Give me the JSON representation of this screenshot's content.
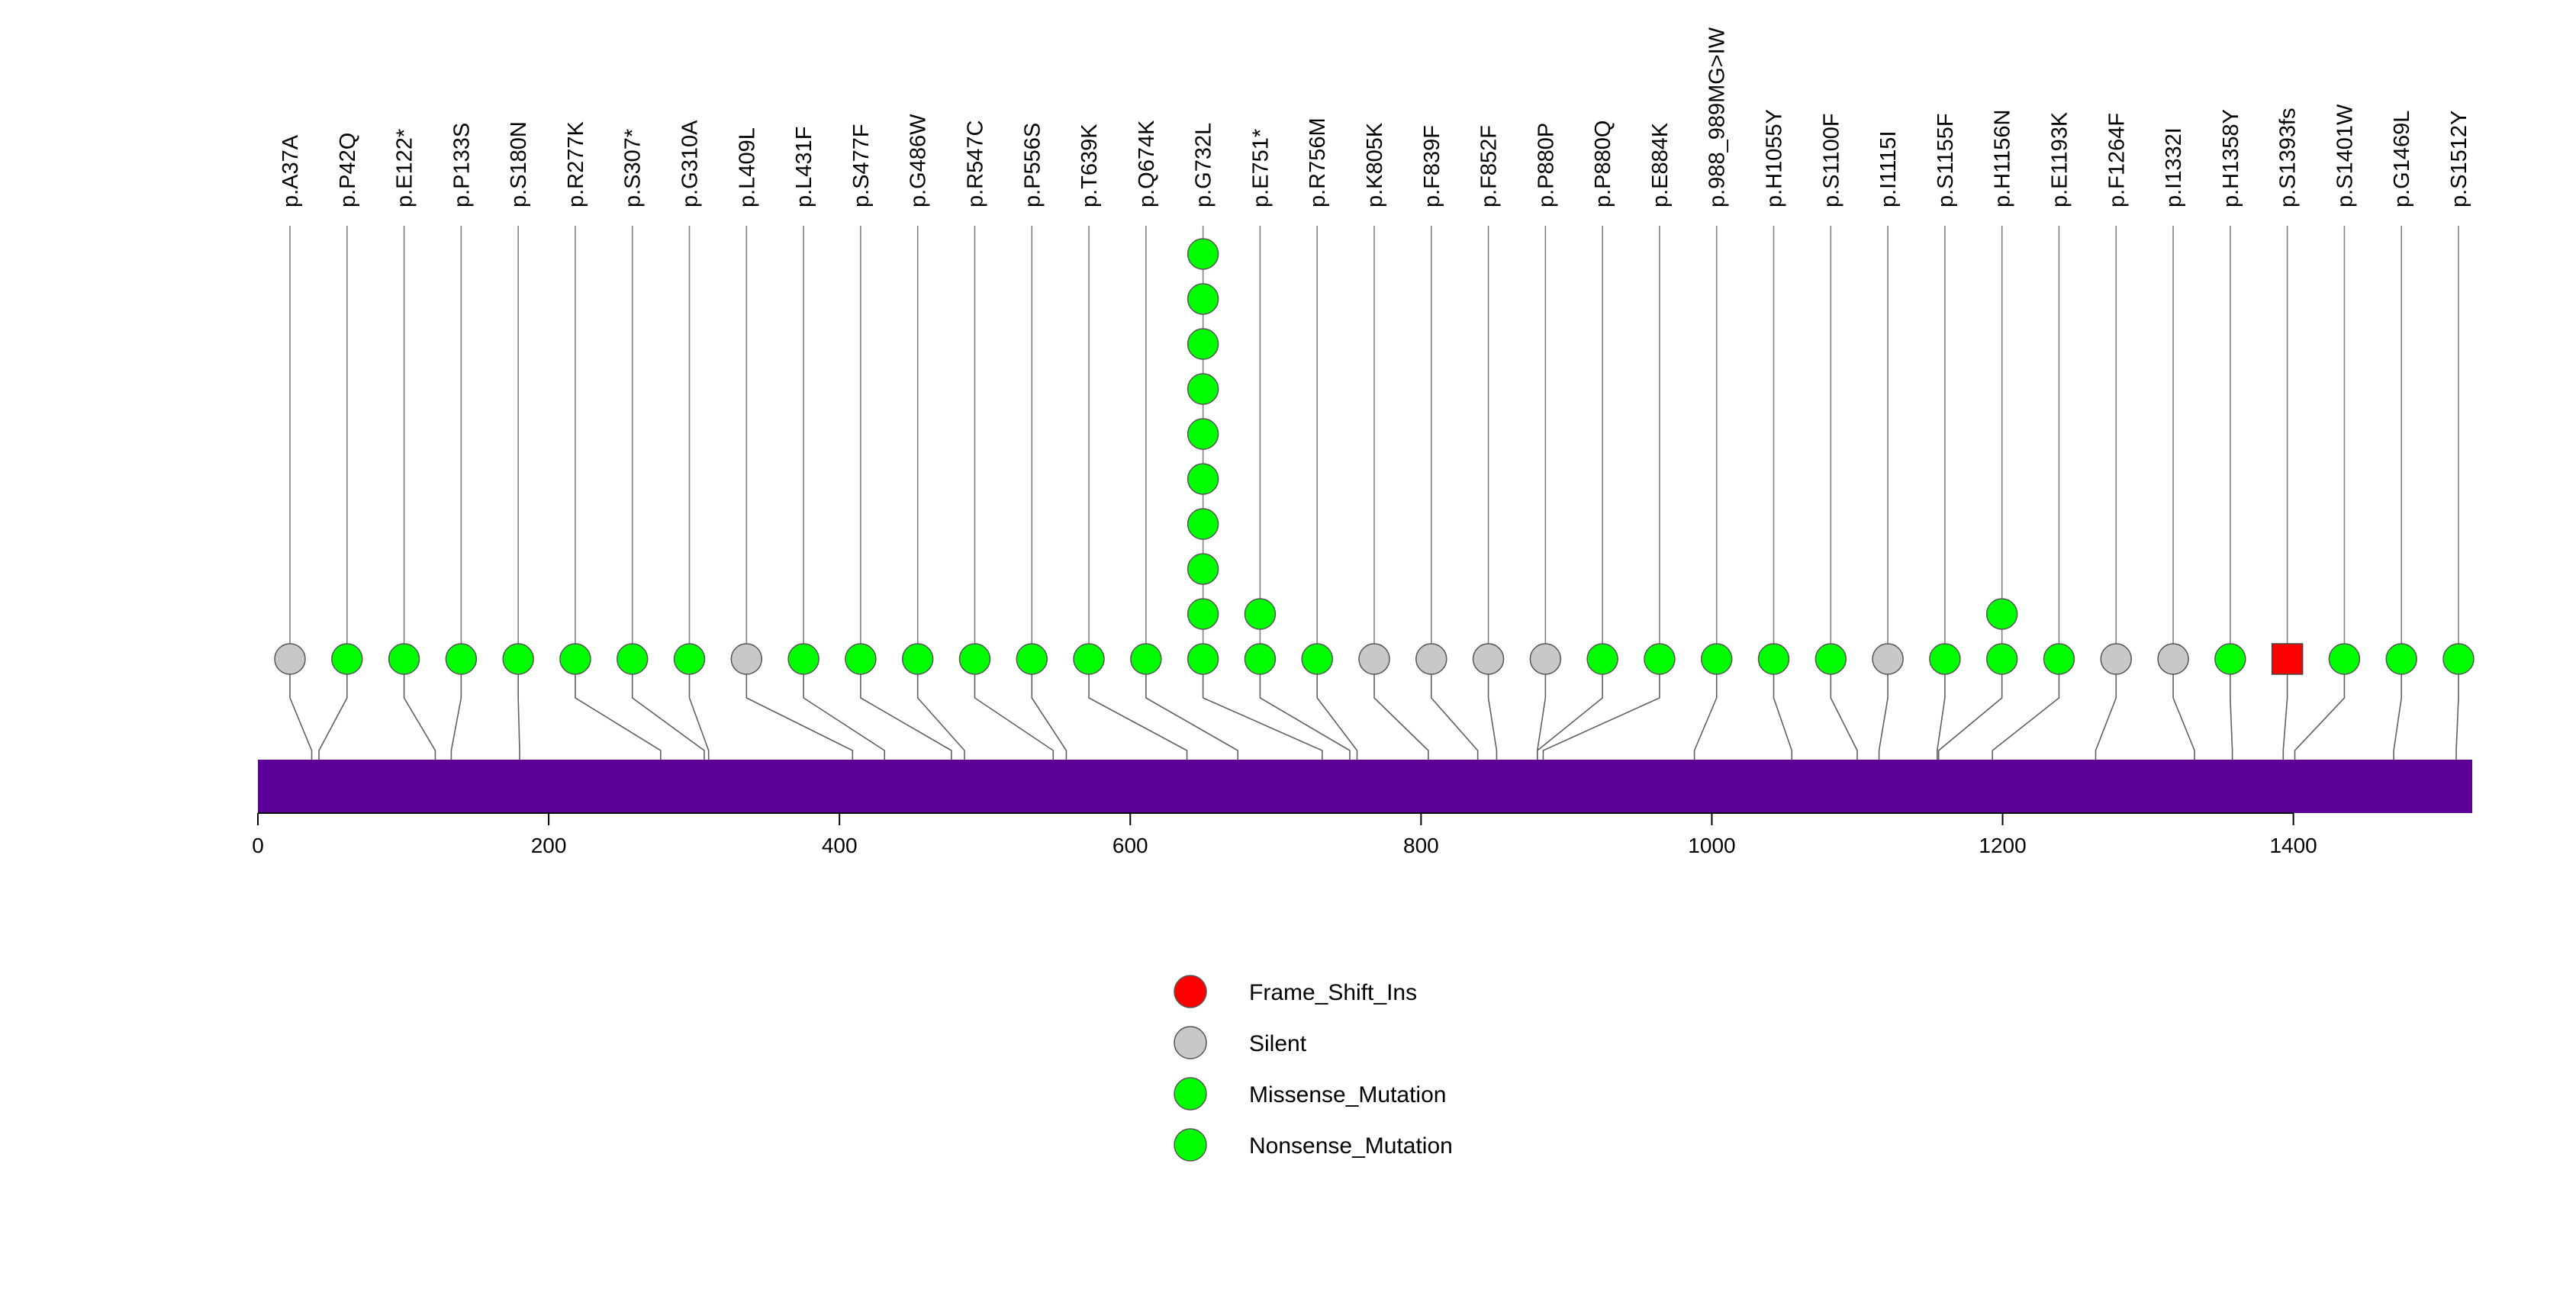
{
  "chart_data": {
    "type": "lollipop",
    "title": "",
    "xlabel": "",
    "ylabel": "",
    "protein_length": 1523,
    "xlim": [
      0,
      1523
    ],
    "xticks": [
      0,
      200,
      400,
      600,
      800,
      1000,
      1200,
      1400
    ],
    "protein_bar_color": "#5b0098",
    "mutations": [
      {
        "label": "p.A37A",
        "position": 37,
        "count": 1,
        "type": "Silent"
      },
      {
        "label": "p.P42Q",
        "position": 42,
        "count": 1,
        "type": "Missense_Mutation"
      },
      {
        "label": "p.E122*",
        "position": 122,
        "count": 1,
        "type": "Nonsense_Mutation"
      },
      {
        "label": "p.P133S",
        "position": 133,
        "count": 1,
        "type": "Missense_Mutation"
      },
      {
        "label": "p.S180N",
        "position": 180,
        "count": 1,
        "type": "Missense_Mutation"
      },
      {
        "label": "p.R277K",
        "position": 277,
        "count": 1,
        "type": "Missense_Mutation"
      },
      {
        "label": "p.S307*",
        "position": 307,
        "count": 1,
        "type": "Nonsense_Mutation"
      },
      {
        "label": "p.G310A",
        "position": 310,
        "count": 1,
        "type": "Missense_Mutation"
      },
      {
        "label": "p.L409L",
        "position": 409,
        "count": 1,
        "type": "Silent"
      },
      {
        "label": "p.L431F",
        "position": 431,
        "count": 1,
        "type": "Missense_Mutation"
      },
      {
        "label": "p.S477F",
        "position": 477,
        "count": 1,
        "type": "Missense_Mutation"
      },
      {
        "label": "p.G486W",
        "position": 486,
        "count": 1,
        "type": "Missense_Mutation"
      },
      {
        "label": "p.R547C",
        "position": 547,
        "count": 1,
        "type": "Missense_Mutation"
      },
      {
        "label": "p.P556S",
        "position": 556,
        "count": 1,
        "type": "Missense_Mutation"
      },
      {
        "label": "p.T639K",
        "position": 639,
        "count": 1,
        "type": "Missense_Mutation"
      },
      {
        "label": "p.Q674K",
        "position": 674,
        "count": 1,
        "type": "Missense_Mutation"
      },
      {
        "label": "p.G732L",
        "position": 732,
        "count": 10,
        "type": "Missense_Mutation"
      },
      {
        "label": "p.E751*",
        "position": 751,
        "count": 2,
        "type": "Nonsense_Mutation"
      },
      {
        "label": "p.R756M",
        "position": 756,
        "count": 1,
        "type": "Missense_Mutation"
      },
      {
        "label": "p.K805K",
        "position": 805,
        "count": 1,
        "type": "Silent"
      },
      {
        "label": "p.F839F",
        "position": 839,
        "count": 1,
        "type": "Silent"
      },
      {
        "label": "p.F852F",
        "position": 852,
        "count": 1,
        "type": "Silent"
      },
      {
        "label": "p.P880P",
        "position": 880,
        "count": 1,
        "type": "Silent"
      },
      {
        "label": "p.P880Q",
        "position": 880,
        "count": 1,
        "type": "Missense_Mutation"
      },
      {
        "label": "p.E884K",
        "position": 884,
        "count": 1,
        "type": "Missense_Mutation"
      },
      {
        "label": "p.988_989MG>IW",
        "position": 988,
        "count": 1,
        "type": "Missense_Mutation"
      },
      {
        "label": "p.H1055Y",
        "position": 1055,
        "count": 1,
        "type": "Missense_Mutation"
      },
      {
        "label": "p.S1100F",
        "position": 1100,
        "count": 1,
        "type": "Missense_Mutation"
      },
      {
        "label": "p.I1115I",
        "position": 1115,
        "count": 1,
        "type": "Silent"
      },
      {
        "label": "p.S1155F",
        "position": 1155,
        "count": 1,
        "type": "Missense_Mutation"
      },
      {
        "label": "p.H1156N",
        "position": 1156,
        "count": 2,
        "type": "Missense_Mutation"
      },
      {
        "label": "p.E1193K",
        "position": 1193,
        "count": 1,
        "type": "Missense_Mutation"
      },
      {
        "label": "p.F1264F",
        "position": 1264,
        "count": 1,
        "type": "Silent"
      },
      {
        "label": "p.I1332I",
        "position": 1332,
        "count": 1,
        "type": "Silent"
      },
      {
        "label": "p.H1358Y",
        "position": 1358,
        "count": 1,
        "type": "Missense_Mutation"
      },
      {
        "label": "p.S1393fs",
        "position": 1393,
        "count": 1,
        "type": "Frame_Shift_Ins"
      },
      {
        "label": "p.S1401W",
        "position": 1401,
        "count": 1,
        "type": "Missense_Mutation"
      },
      {
        "label": "p.G1469L",
        "position": 1469,
        "count": 1,
        "type": "Missense_Mutation"
      },
      {
        "label": "p.S1512Y",
        "position": 1512,
        "count": 1,
        "type": "Missense_Mutation"
      }
    ],
    "legend": [
      {
        "label": "Frame_Shift_Ins",
        "color": "#ff0000"
      },
      {
        "label": "Silent",
        "color": "#c8c8c8"
      },
      {
        "label": "Missense_Mutation",
        "color": "#00ff00"
      },
      {
        "label": "Nonsense_Mutation",
        "color": "#00ff00"
      }
    ]
  }
}
